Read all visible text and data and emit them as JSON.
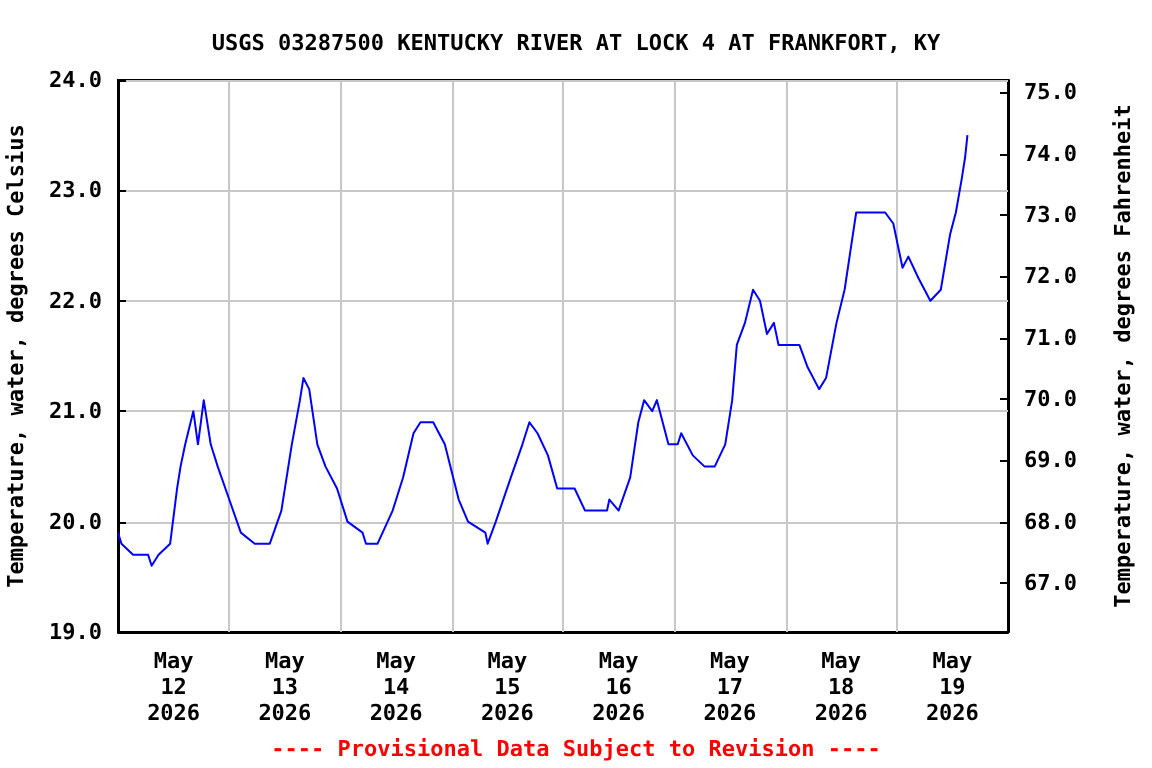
{
  "chart_data": {
    "type": "line",
    "title": "USGS 03287500 KENTUCKY RIVER AT LOCK 4 AT FRANKFORT, KY",
    "ylabel": "Temperature, water, degrees Celsius",
    "y2label": "Temperature, water, degrees Fahrenheit",
    "annotations": [
      "---- Provisional Data Subject to Revision ----"
    ],
    "x": [
      "2026-05-12T00:00",
      "2026-05-12T00:45",
      "2026-05-12T03:15",
      "2026-05-12T06:30",
      "2026-05-12T07:15",
      "2026-05-12T08:45",
      "2026-05-12T11:15",
      "2026-05-12T12:45",
      "2026-05-12T13:30",
      "2026-05-12T14:30",
      "2026-05-12T16:15",
      "2026-05-12T17:15",
      "2026-05-12T18:30",
      "2026-05-12T20:00",
      "2026-05-12T21:30",
      "2026-05-13T00:00",
      "2026-05-13T02:30",
      "2026-05-13T05:30",
      "2026-05-13T08:45",
      "2026-05-13T11:15",
      "2026-05-13T13:30",
      "2026-05-13T15:15",
      "2026-05-13T16:00",
      "2026-05-13T17:15",
      "2026-05-13T19:00",
      "2026-05-13T20:45",
      "2026-05-13T23:15",
      "2026-05-14T01:30",
      "2026-05-14T04:45",
      "2026-05-14T05:30",
      "2026-05-14T08:00",
      "2026-05-14T11:15",
      "2026-05-14T13:30",
      "2026-05-14T15:45",
      "2026-05-14T17:15",
      "2026-05-14T20:00",
      "2026-05-14T22:30",
      "2026-05-15T01:30",
      "2026-05-15T03:30",
      "2026-05-15T07:15",
      "2026-05-15T07:45",
      "2026-05-15T09:30",
      "2026-05-15T12:45",
      "2026-05-15T15:15",
      "2026-05-15T16:45",
      "2026-05-15T18:30",
      "2026-05-15T20:45",
      "2026-05-15T22:45",
      "2026-05-16T02:30",
      "2026-05-16T04:45",
      "2026-05-16T09:30",
      "2026-05-16T10:00",
      "2026-05-16T12:00",
      "2026-05-16T14:30",
      "2026-05-16T16:15",
      "2026-05-16T17:30",
      "2026-05-16T19:15",
      "2026-05-16T20:15",
      "2026-05-16T22:45",
      "2026-05-17T00:45",
      "2026-05-17T01:30",
      "2026-05-17T04:00",
      "2026-05-17T06:30",
      "2026-05-17T08:45",
      "2026-05-17T11:00",
      "2026-05-17T12:30",
      "2026-05-17T13:30",
      "2026-05-17T15:15",
      "2026-05-17T17:00",
      "2026-05-17T18:30",
      "2026-05-17T20:00",
      "2026-05-17T21:30",
      "2026-05-17T22:30",
      "2026-05-18T03:00",
      "2026-05-18T04:45",
      "2026-05-18T07:15",
      "2026-05-18T08:45",
      "2026-05-18T11:00",
      "2026-05-18T12:45",
      "2026-05-18T15:15",
      "2026-05-18T21:30",
      "2026-05-18T23:15",
      "2026-05-19T01:15",
      "2026-05-19T02:30",
      "2026-05-19T04:45",
      "2026-05-19T07:15",
      "2026-05-19T09:30",
      "2026-05-19T11:30",
      "2026-05-19T12:45",
      "2026-05-19T14:00",
      "2026-05-19T14:45",
      "2026-05-19T15:15"
    ],
    "series": [
      {
        "color": "#0000ff",
        "values": [
          19.9,
          19.8,
          19.7,
          19.7,
          19.6,
          19.7,
          19.8,
          20.3,
          20.5,
          20.7,
          21.0,
          20.7,
          21.1,
          20.7,
          20.5,
          20.2,
          19.9,
          19.8,
          19.8,
          20.1,
          20.7,
          21.1,
          21.3,
          21.2,
          20.7,
          20.5,
          20.3,
          20.0,
          19.9,
          19.8,
          19.8,
          20.1,
          20.4,
          20.8,
          20.9,
          20.9,
          20.7,
          20.2,
          20.0,
          19.9,
          19.8,
          20.0,
          20.4,
          20.7,
          20.9,
          20.8,
          20.6,
          20.3,
          20.3,
          20.1,
          20.1,
          20.2,
          20.1,
          20.4,
          20.9,
          21.1,
          21.0,
          21.1,
          20.7,
          20.7,
          20.8,
          20.6,
          20.5,
          20.5,
          20.7,
          21.1,
          21.6,
          21.8,
          22.1,
          22.0,
          21.7,
          21.8,
          21.6,
          21.6,
          21.4,
          21.2,
          21.3,
          21.8,
          22.1,
          22.8,
          22.8,
          22.7,
          22.3,
          22.4,
          22.2,
          22.0,
          22.1,
          22.6,
          22.8,
          23.1,
          23.3,
          23.5
        ]
      }
    ],
    "xlim": [
      "2026-05-12T00:00",
      "2026-05-20T00:00"
    ],
    "xticks": [
      {
        "value": "2026-05-12T12:00",
        "label": "May\n12\n2026"
      },
      {
        "value": "2026-05-13T00:00",
        "label": null
      },
      {
        "value": "2026-05-13T12:00",
        "label": "May\n13\n2026"
      },
      {
        "value": "2026-05-14T00:00",
        "label": null
      },
      {
        "value": "2026-05-14T12:00",
        "label": "May\n14\n2026"
      },
      {
        "value": "2026-05-15T00:00",
        "label": null
      },
      {
        "value": "2026-05-15T12:00",
        "label": "May\n15\n2026"
      },
      {
        "value": "2026-05-16T00:00",
        "label": null
      },
      {
        "value": "2026-05-16T12:00",
        "label": "May\n16\n2026"
      },
      {
        "value": "2026-05-17T00:00",
        "label": null
      },
      {
        "value": "2026-05-17T12:00",
        "label": "May\n17\n2026"
      },
      {
        "value": "2026-05-18T00:00",
        "label": null
      },
      {
        "value": "2026-05-18T12:00",
        "label": "May\n18\n2026"
      },
      {
        "value": "2026-05-19T00:00",
        "label": null
      },
      {
        "value": "2026-05-19T12:00",
        "label": "May\n19\n2026"
      }
    ],
    "ylim": [
      19,
      24
    ],
    "yticks": [
      {
        "value": 19,
        "label": "19.0"
      },
      {
        "value": 20,
        "label": "20.0"
      },
      {
        "value": 21,
        "label": "21.0"
      },
      {
        "value": 22,
        "label": "22.0"
      },
      {
        "value": 23,
        "label": "23.0"
      },
      {
        "value": 24,
        "label": "24.0"
      }
    ],
    "y2lim": [
      66.2,
      75.2
    ],
    "y2ticks": [
      {
        "value": 67,
        "label": "67.0"
      },
      {
        "value": 68,
        "label": "68.0"
      },
      {
        "value": 69,
        "label": "69.0"
      },
      {
        "value": 70,
        "label": "70.0"
      },
      {
        "value": 71,
        "label": "71.0"
      },
      {
        "value": 72,
        "label": "72.0"
      },
      {
        "value": 73,
        "label": "73.0"
      },
      {
        "value": 74,
        "label": "74.0"
      },
      {
        "value": 75,
        "label": "75.0"
      }
    ],
    "grid": true,
    "marker": "none",
    "line_style": "solid"
  }
}
